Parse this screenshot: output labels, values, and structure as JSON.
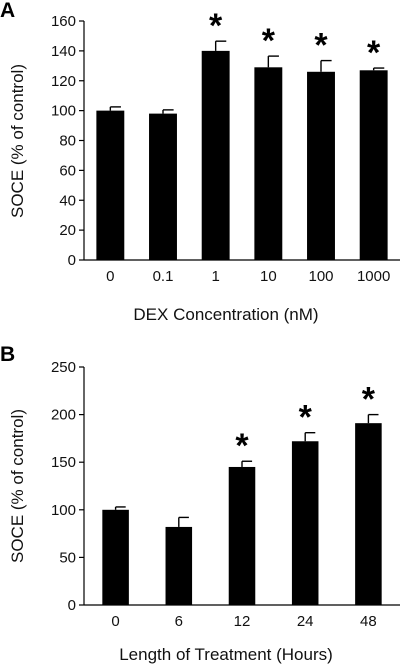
{
  "chart_data": [
    {
      "panel": "A",
      "type": "bar",
      "xlabel": "DEX Concentration (nM)",
      "ylabel": "SOCE (% of control)",
      "categories": [
        "0",
        "0.1",
        "1",
        "10",
        "100",
        "1000"
      ],
      "values": [
        100,
        98,
        140,
        129,
        126,
        127
      ],
      "error": [
        2.5,
        2.5,
        6.5,
        7.5,
        7.5,
        1.5
      ],
      "significance": [
        "",
        "",
        "*",
        "*",
        "*",
        "*"
      ],
      "ylim": [
        0,
        160
      ],
      "yticks": [
        "0",
        "20",
        "40",
        "60",
        "80",
        "100",
        "120",
        "140",
        "160"
      ],
      "grid": false,
      "color": "#000000"
    },
    {
      "panel": "B",
      "type": "bar",
      "xlabel": "Length of Treatment (Hours)",
      "ylabel": "SOCE (% of control)",
      "categories": [
        "0",
        "6",
        "12",
        "24",
        "48"
      ],
      "values": [
        100,
        82,
        145,
        172,
        191
      ],
      "error": [
        3,
        10,
        6,
        9,
        9
      ],
      "significance": [
        "",
        "",
        "*",
        "*",
        "*"
      ],
      "ylim": [
        0,
        250
      ],
      "yticks": [
        "0",
        "50",
        "100",
        "150",
        "200",
        "250"
      ],
      "grid": false,
      "color": "#000000"
    }
  ]
}
